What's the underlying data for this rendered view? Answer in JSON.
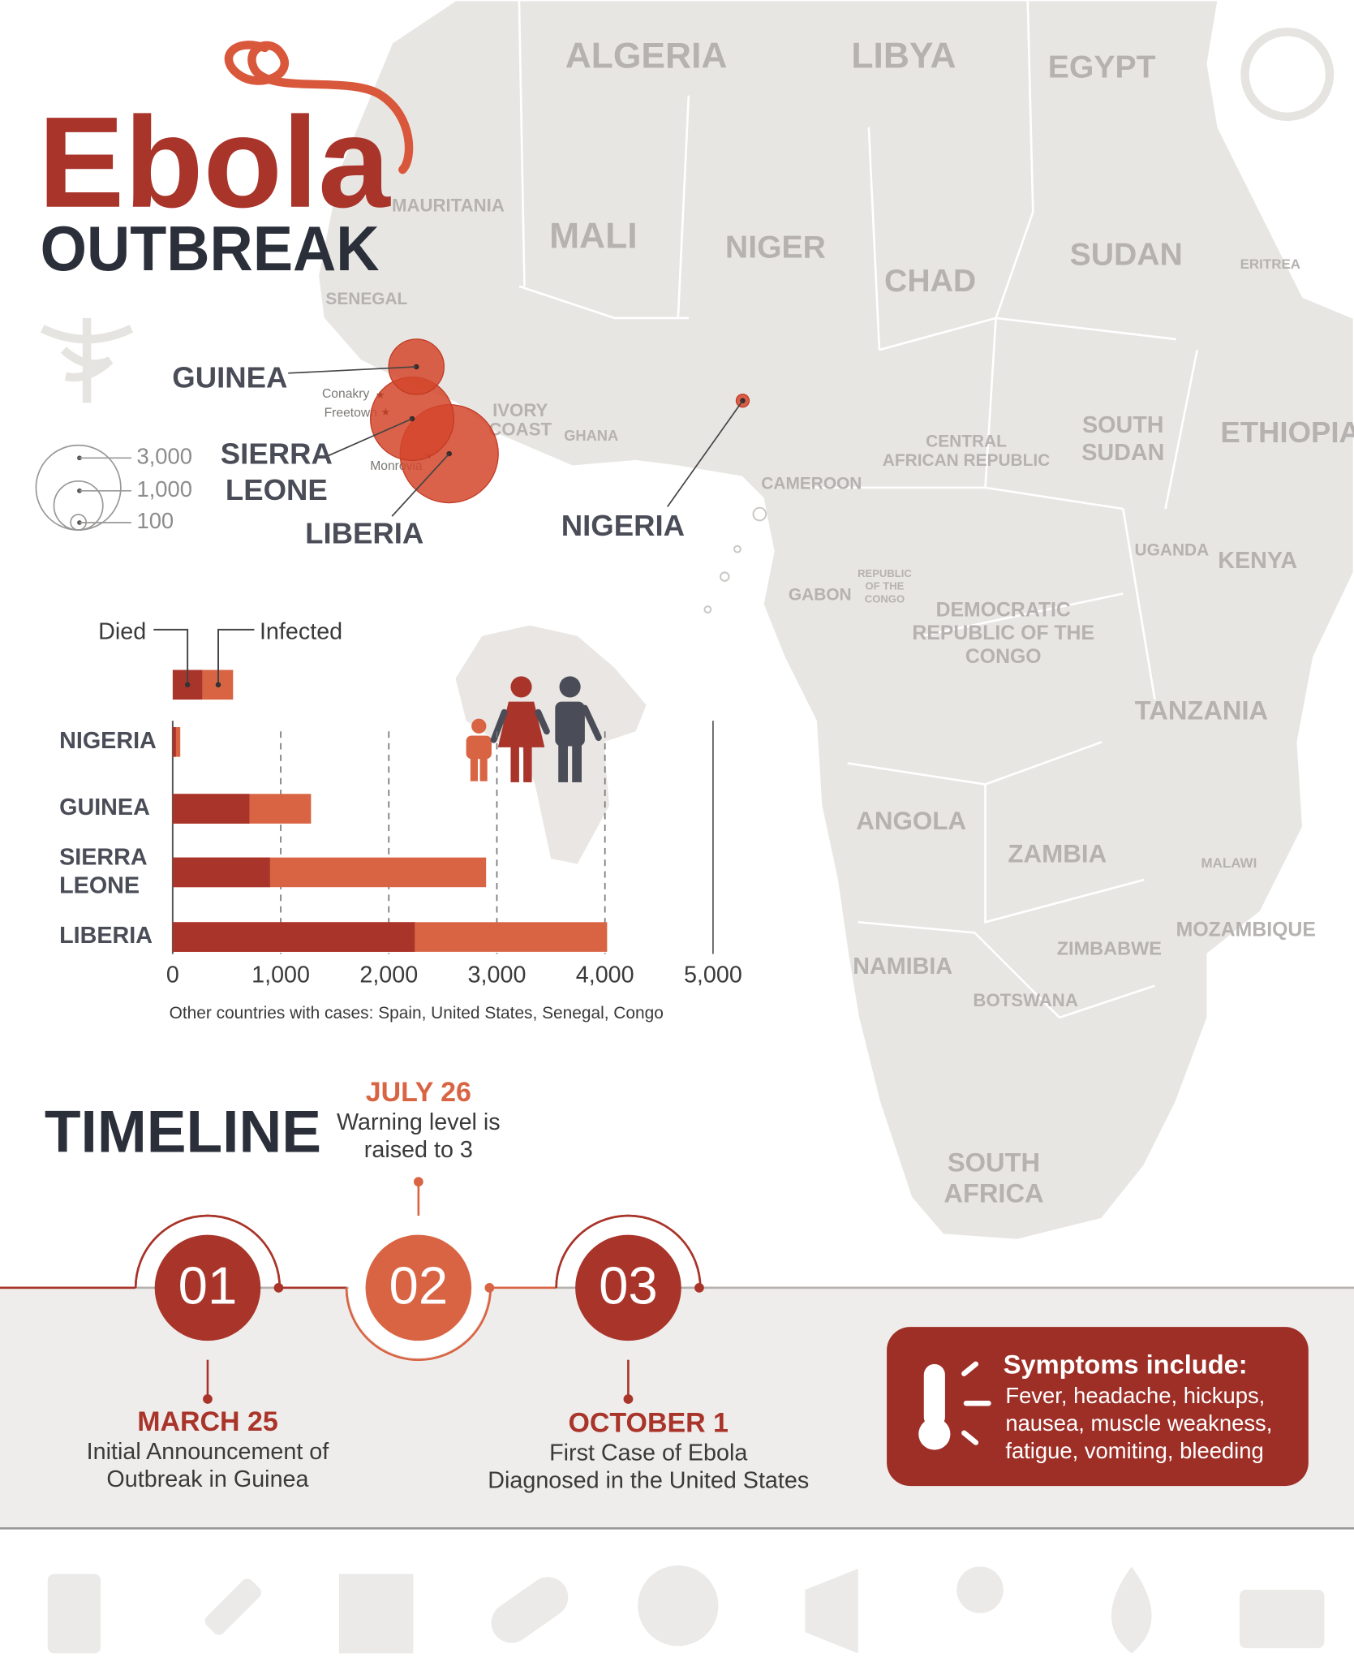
{
  "header": {
    "title": "Ebola",
    "subtitle": "OUTBREAK"
  },
  "map": {
    "countries": [
      "ALGERIA",
      "LIBYA",
      "EGYPT",
      "MAURITANIA",
      "MALI",
      "NIGER",
      "CHAD",
      "SUDAN",
      "ERITREA",
      "SENEGAL",
      "IVORY COAST",
      "GHANA",
      "CENTRAL AFRICAN REPUBLIC",
      "SOUTH SUDAN",
      "ETHIOPIA",
      "CAMEROON",
      "UGANDA",
      "KENYA",
      "GABON",
      "REPUBLIC OF THE CONGO",
      "DEMOCRATIC REPUBLIC OF THE CONGO",
      "TANZANIA",
      "ANGOLA",
      "ZAMBIA",
      "MALAWI",
      "MOZAMBIQUE",
      "NAMIBIA",
      "ZIMBABWE",
      "BOTSWANA",
      "SOUTH AFRICA"
    ],
    "cities": [
      "Conakry",
      "Freetown",
      "Monrovia"
    ],
    "bubble_legend": [
      {
        "value": 3000,
        "label": "3,000"
      },
      {
        "value": 1000,
        "label": "1,000"
      },
      100
    ]
  },
  "chart_data": {
    "type": "bar",
    "orientation": "horizontal",
    "categories": [
      "NIGERIA",
      "GUINEA",
      "SIERRA LEONE",
      "LIBERIA"
    ],
    "series": [
      {
        "name": "Died",
        "color": "#a9342a",
        "values": [
          30,
          710,
          900,
          2240
        ]
      },
      {
        "name": "Infected",
        "color": "#d96443",
        "values": [
          70,
          1280,
          2900,
          4020
        ]
      }
    ],
    "xlim": [
      0,
      5000
    ],
    "xticks": [
      0,
      {
        "value": 1000,
        "label": "1,000"
      },
      {
        "value": 2000,
        "label": "2,000"
      },
      {
        "value": 3000,
        "label": "3,000"
      },
      {
        "value": 4000,
        "label": "4,000"
      },
      {
        "value": 5000,
        "label": "5,000"
      }
    ],
    "grid": true,
    "note": "Other countries with cases: Spain, United States, Senegal, Congo"
  },
  "timeline": {
    "title": "TIMELINE",
    "events": [
      {
        "number": "01",
        "date": "MARCH 25",
        "description": [
          "Initial Announcement of",
          "Outbreak in Guinea"
        ]
      },
      {
        "number": "02",
        "date": "JULY 26",
        "description": [
          "Warning level is",
          "raised to 3"
        ]
      },
      {
        "number": "03",
        "date": "OCTOBER 1",
        "description": [
          "First Case of Ebola",
          "Diagnosed in the United States"
        ]
      }
    ]
  },
  "symptoms": {
    "title": "Symptoms include:",
    "lines": [
      "Fever, headache, hickups,",
      "nausea, muscle weakness,",
      "fatigue, vomiting, bleeding"
    ]
  }
}
